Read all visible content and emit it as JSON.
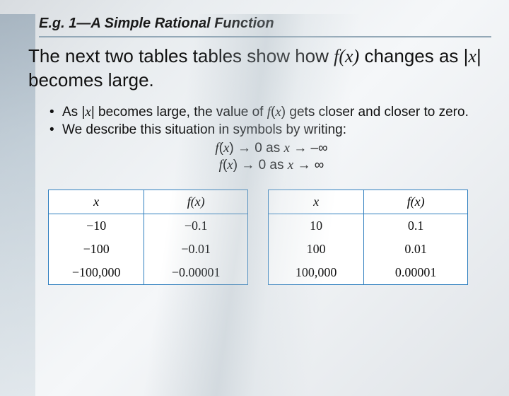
{
  "header": {
    "title": "E.g. 1—A Simple Rational Function",
    "underline_color": "#93a8b7"
  },
  "paragraph": {
    "prefix": "The next two tables tables show how ",
    "fx": "f(x)",
    "middle": " changes as |",
    "x": "x",
    "suffix": "| becomes large."
  },
  "bullets": [
    {
      "prefix": "As |",
      "x": "x",
      "mid": "| becomes large, the value of ",
      "fx": "f",
      "fxparen": "(",
      "fxvar": "x",
      "fxclose": ") gets closer and closer to zero."
    },
    {
      "text": "We describe this situation in symbols by writing:"
    }
  ],
  "limits": {
    "line1": {
      "f": "f",
      "open": "(",
      "x1": "x",
      "close": ") → 0 as ",
      "x2": "x",
      "tail": " → –∞"
    },
    "line2": {
      "f": "f",
      "open": "(",
      "x1": "x",
      "close": ") → 0 as ",
      "x2": "x",
      "tail": " → ∞"
    }
  },
  "tables": {
    "left": {
      "header_x": "x",
      "header_fx": "f(x)",
      "rows": [
        {
          "x": "−10",
          "fx": "−0.1"
        },
        {
          "x": "−100",
          "fx": "−0.01"
        },
        {
          "x": "−100,000",
          "fx": "−0.00001"
        }
      ]
    },
    "right": {
      "header_x": "x",
      "header_fx": "f(x)",
      "rows": [
        {
          "x": "10",
          "fx": "0.1"
        },
        {
          "x": "100",
          "fx": "0.01"
        },
        {
          "x": "100,000",
          "fx": "0.00001"
        }
      ]
    },
    "border_color": "#2f7fbf",
    "background_color": "#ffffff",
    "font_family": "Times New Roman"
  },
  "slide_background": {
    "gradient_colors": [
      "#d8dce0",
      "#e8ecef",
      "#f5f7f9",
      "#e0e4e8"
    ]
  }
}
